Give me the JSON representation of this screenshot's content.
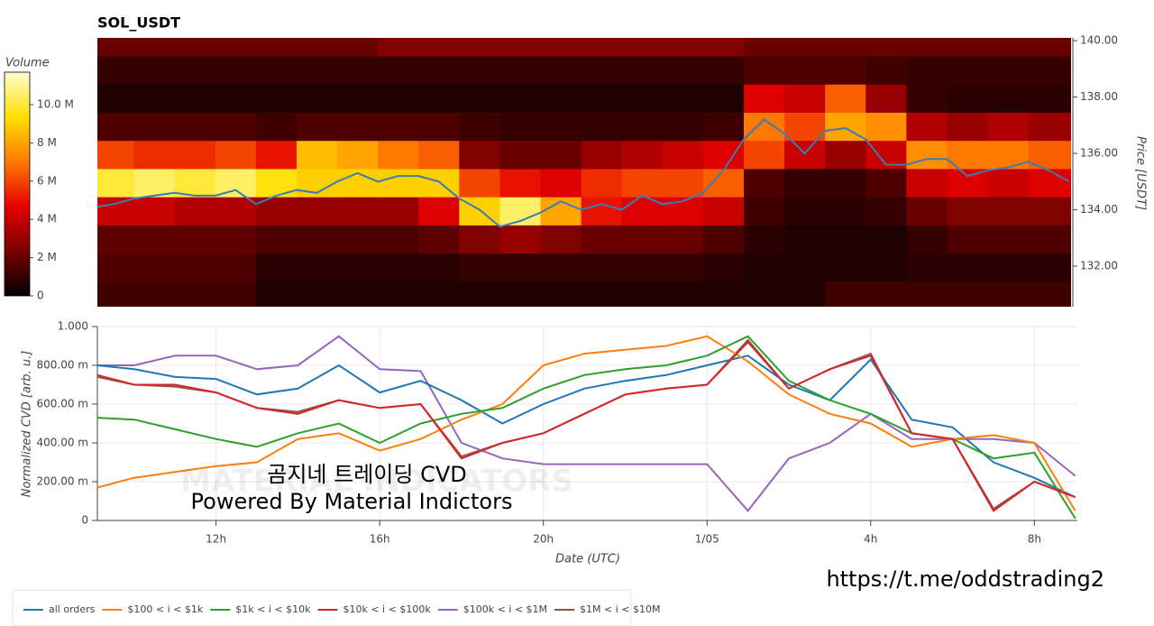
{
  "chart_data": [
    {
      "type": "heatmap",
      "title": "SOL_USDT",
      "y_label": "Price [USDT]",
      "colorbar_label": "Volume",
      "xlim": [
        9.1,
        33.05
      ],
      "ylim": [
        130.56,
        140.1
      ],
      "yticks": [
        {
          "value": 132,
          "label": "132.00"
        },
        {
          "value": 134,
          "label": "134.00"
        },
        {
          "value": 136,
          "label": "136.00"
        },
        {
          "value": 138,
          "label": "138.00"
        },
        {
          "value": 140,
          "label": "140.00"
        }
      ],
      "clim": [
        0,
        11.7
      ],
      "cticks": [
        0,
        {
          "value": 2,
          "label": "2 M"
        },
        {
          "value": 4,
          "label": "4 M"
        },
        {
          "value": 6,
          "label": "6 M"
        },
        {
          "value": 8,
          "label": "8 M"
        },
        {
          "value": 10,
          "label": "10.0 M"
        }
      ],
      "colormap": [
        "#000000",
        "#7a0000",
        "#e60000",
        "#ff7a00",
        "#ffe000",
        "#ffffd0"
      ],
      "x_edges": [
        9.1,
        10,
        11,
        12,
        13,
        14,
        15,
        16,
        17,
        18,
        19,
        20,
        21,
        22,
        23,
        24,
        25,
        26,
        27,
        28,
        29,
        30,
        31,
        32,
        33.05
      ],
      "price_bins": [
        130.46,
        131.46,
        132.46,
        133.46,
        134.46,
        135.46,
        136.46,
        137.46,
        138.46,
        139.46,
        140.46
      ],
      "values": [
        [
          1.2,
          1.2,
          1.2,
          1.2,
          0.6,
          0.6,
          0.6,
          0.6,
          0.6,
          0.6,
          0.6,
          0.6,
          0.6,
          0.6,
          0.6,
          0.6,
          0.6,
          0.6,
          1.2,
          1.2,
          1.2,
          1.2,
          1.2,
          1.2
        ],
        [
          1.5,
          1.5,
          1.5,
          1.5,
          0.8,
          0.8,
          0.8,
          0.8,
          0.8,
          1.0,
          1.0,
          1.0,
          1.0,
          1.0,
          1.0,
          0.8,
          0.6,
          0.6,
          0.6,
          0.6,
          0.8,
          0.8,
          0.8,
          0.8
        ],
        [
          1.8,
          1.8,
          1.8,
          1.8,
          1.5,
          1.5,
          1.5,
          1.5,
          1.8,
          2.5,
          3.0,
          2.5,
          2.0,
          2.0,
          2.0,
          1.5,
          0.8,
          0.6,
          0.6,
          0.6,
          1.0,
          1.5,
          1.5,
          1.5
        ],
        [
          4.0,
          4.0,
          3.5,
          3.5,
          3.0,
          3.0,
          3.0,
          3.0,
          4.5,
          9.0,
          10.5,
          8.0,
          5.0,
          4.5,
          4.5,
          4.0,
          1.2,
          0.8,
          0.8,
          1.0,
          2.0,
          2.5,
          2.5,
          2.5
        ],
        [
          10.0,
          10.5,
          10.0,
          10.5,
          9.5,
          9.0,
          9.0,
          9.0,
          9.0,
          6.0,
          5.0,
          4.5,
          5.5,
          6.0,
          6.0,
          6.5,
          1.5,
          1.0,
          1.0,
          1.5,
          4.0,
          4.5,
          4.0,
          4.5
        ],
        [
          6.0,
          5.5,
          5.5,
          6.0,
          5.0,
          8.5,
          8.0,
          7.0,
          6.5,
          2.5,
          2.0,
          2.0,
          3.0,
          3.5,
          4.0,
          4.5,
          6.0,
          4.0,
          3.0,
          4.0,
          7.5,
          7.0,
          7.0,
          6.5
        ],
        [
          1.5,
          1.5,
          1.5,
          1.5,
          1.2,
          1.5,
          1.5,
          1.5,
          1.5,
          1.2,
          1.0,
          1.0,
          1.0,
          1.0,
          1.0,
          1.2,
          7.0,
          6.0,
          8.0,
          7.5,
          3.5,
          3.0,
          3.5,
          3.0
        ],
        [
          0.6,
          0.6,
          0.6,
          0.6,
          0.6,
          0.6,
          0.6,
          0.6,
          0.6,
          0.6,
          0.6,
          0.6,
          0.6,
          0.6,
          0.6,
          0.6,
          4.5,
          4.0,
          6.5,
          3.0,
          1.0,
          0.8,
          0.8,
          0.8
        ],
        [
          1.0,
          1.0,
          1.0,
          1.0,
          1.0,
          1.0,
          1.0,
          1.0,
          1.0,
          1.0,
          1.0,
          1.0,
          1.0,
          1.0,
          1.0,
          1.0,
          1.5,
          1.5,
          1.5,
          1.2,
          1.0,
          1.0,
          1.0,
          1.0
        ],
        [
          2.0,
          2.0,
          2.0,
          2.0,
          2.0,
          2.0,
          2.0,
          2.5,
          2.5,
          2.5,
          2.5,
          2.5,
          2.5,
          2.5,
          2.5,
          2.5,
          2.0,
          2.0,
          2.0,
          2.0,
          2.0,
          2.0,
          2.0,
          2.0
        ]
      ],
      "price": {
        "color": "#3a7db5",
        "x": [
          9.1,
          9.5,
          10,
          10.5,
          11,
          11.5,
          12,
          12.5,
          13,
          13.5,
          14,
          14.5,
          15,
          15.5,
          16,
          16.5,
          17,
          17.5,
          18,
          18.5,
          19,
          19.5,
          20,
          20.5,
          21,
          21.5,
          22,
          22.5,
          23,
          23.5,
          24,
          24.5,
          25,
          25.5,
          26,
          26.5,
          27,
          27.5,
          28,
          28.5,
          29,
          29.5,
          30,
          30.5,
          31,
          31.5,
          32,
          32.5,
          33
        ],
        "values": [
          134.1,
          134.2,
          134.4,
          134.5,
          134.6,
          134.5,
          134.5,
          134.7,
          134.2,
          134.5,
          134.7,
          134.6,
          135.0,
          135.3,
          135.0,
          135.2,
          135.2,
          135.0,
          134.4,
          134.0,
          133.4,
          133.6,
          133.9,
          134.3,
          134.0,
          134.2,
          134.0,
          134.5,
          134.2,
          134.3,
          134.6,
          135.4,
          136.5,
          137.2,
          136.7,
          136.0,
          136.8,
          136.9,
          136.5,
          135.6,
          135.6,
          135.8,
          135.8,
          135.2,
          135.4,
          135.5,
          135.7,
          135.4,
          135.0
        ]
      }
    },
    {
      "type": "line",
      "x_label": "Date (UTC)",
      "y_label": "Normalized CVD [arb. u.]",
      "xlim": [
        9.1,
        33.05
      ],
      "ylim": [
        0,
        1
      ],
      "xticks": [
        {
          "value": 12,
          "label": "12h"
        },
        {
          "value": 16,
          "label": "16h"
        },
        {
          "value": 20,
          "label": "20h"
        },
        {
          "value": 24,
          "label": "1/05"
        },
        {
          "value": 28,
          "label": "4h"
        },
        {
          "value": 32,
          "label": "8h"
        }
      ],
      "yticks": [
        0,
        {
          "value": 0.2,
          "label": "200.00 m"
        },
        {
          "value": 0.4,
          "label": "400.00 m"
        },
        {
          "value": 0.6,
          "label": "600.00 m"
        },
        {
          "value": 0.8,
          "label": "800.00 m"
        },
        {
          "value": 1,
          "label": "1.000"
        }
      ],
      "grid": true,
      "x": [
        9.1,
        10,
        11,
        12,
        13,
        14,
        15,
        16,
        17,
        18,
        19,
        20,
        21,
        22,
        23,
        24,
        25,
        26,
        27,
        28,
        29,
        30,
        31,
        32,
        33
      ],
      "series": [
        {
          "name": "all orders",
          "color": "#1f77b4",
          "values": [
            0.8,
            0.78,
            0.74,
            0.73,
            0.65,
            0.68,
            0.8,
            0.66,
            0.72,
            0.62,
            0.5,
            0.6,
            0.68,
            0.72,
            0.75,
            0.8,
            0.85,
            0.7,
            0.62,
            0.83,
            0.52,
            0.48,
            0.3,
            0.22,
            0.12
          ]
        },
        {
          "name": "$100 < i < $1k",
          "color": "#ff7f0e",
          "values": [
            0.17,
            0.22,
            0.25,
            0.28,
            0.3,
            0.42,
            0.45,
            0.36,
            0.42,
            0.52,
            0.6,
            0.8,
            0.86,
            0.88,
            0.9,
            0.95,
            0.82,
            0.65,
            0.55,
            0.5,
            0.38,
            0.42,
            0.44,
            0.4,
            0.05
          ]
        },
        {
          "name": "$1k < i < $10k",
          "color": "#2ca02c",
          "values": [
            0.53,
            0.52,
            0.47,
            0.42,
            0.38,
            0.45,
            0.5,
            0.4,
            0.5,
            0.55,
            0.58,
            0.68,
            0.75,
            0.78,
            0.8,
            0.85,
            0.95,
            0.72,
            0.62,
            0.55,
            0.45,
            0.42,
            0.32,
            0.35,
            0.01
          ]
        },
        {
          "name": "$10k < i < $100k",
          "color": "#d62728",
          "values": [
            0.75,
            0.7,
            0.7,
            0.66,
            0.58,
            0.55,
            0.62,
            0.58,
            0.6,
            0.32,
            0.4,
            0.45,
            0.55,
            0.65,
            0.68,
            0.7,
            0.92,
            0.68,
            0.78,
            0.85,
            0.45,
            0.42,
            0.05,
            0.2,
            0.12
          ]
        },
        {
          "name": "$100k < i < $1M",
          "color": "#9467bd",
          "values": [
            0.8,
            0.8,
            0.85,
            0.85,
            0.78,
            0.8,
            0.95,
            0.78,
            0.77,
            0.4,
            0.32,
            0.29,
            0.29,
            0.29,
            0.29,
            0.29,
            0.05,
            0.32,
            0.4,
            0.55,
            0.42,
            0.42,
            0.42,
            0.4,
            0.23
          ]
        },
        {
          "name": "$1M < i < $10M",
          "color": "#8c564b",
          "values": [
            0.74,
            0.7,
            0.69,
            0.66,
            0.58,
            0.56,
            0.62,
            0.58,
            0.6,
            0.33,
            0.4,
            0.45,
            0.55,
            0.65,
            0.68,
            0.7,
            0.93,
            0.68,
            0.78,
            0.86,
            0.45,
            0.42,
            0.06,
            0.2,
            0.12
          ]
        }
      ]
    }
  ],
  "annotations": {
    "watermark": "MATERIAL INDICATORS",
    "line1": "곰지네 트레이딩 CVD",
    "line2": "Powered By Material Indictors",
    "link": "https://t.me/oddstrading2"
  }
}
